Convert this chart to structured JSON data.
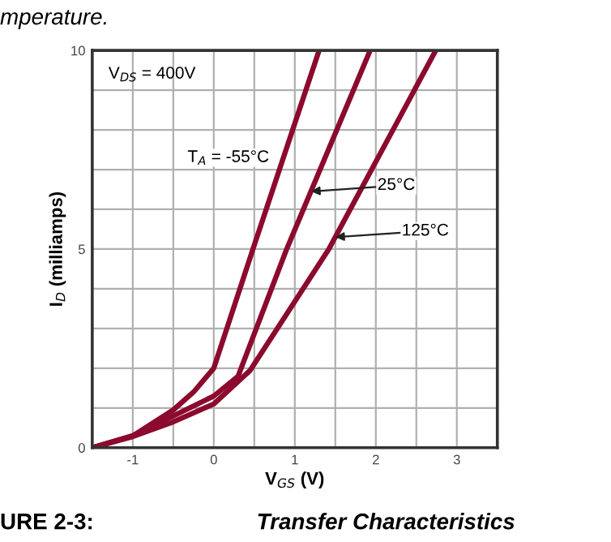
{
  "chart_data": {
    "type": "line",
    "xlabel": "V$_{GS}$ (V)",
    "ylabel": "I$_{D}$ (milliamps)",
    "xlim": [
      -1.5,
      3.5
    ],
    "ylim": [
      0,
      10
    ],
    "xticks": [
      {
        "value": -1.5,
        "label": null
      },
      -1,
      {
        "value": -0.5,
        "label": null
      },
      0,
      {
        "value": 0.5,
        "label": null
      },
      1,
      {
        "value": 1.5,
        "label": null
      },
      2,
      {
        "value": 2.5,
        "label": null
      },
      3,
      {
        "value": 3.5,
        "label": null
      }
    ],
    "yticks": [
      0,
      {
        "value": 1,
        "label": null
      },
      {
        "value": 2,
        "label": null
      },
      {
        "value": 3,
        "label": null
      },
      {
        "value": 4,
        "label": null
      },
      5,
      {
        "value": 6,
        "label": null
      },
      {
        "value": 7,
        "label": null
      },
      {
        "value": 8,
        "label": null
      },
      {
        "value": 9,
        "label": null
      },
      10
    ],
    "grid": true,
    "marker": "none",
    "line_style": "solid",
    "series": [
      {
        "color": "#8b0a2e",
        "x": [
          -1.5,
          -1,
          -0.5,
          -0.25,
          0,
          0.5,
          1.3
        ],
        "values": [
          0,
          0.3,
          0.95,
          1.4,
          2.0,
          5.1,
          10
        ]
      },
      {
        "color": "#8b0a2e",
        "x": [
          -1.5,
          -1,
          -0.5,
          0,
          0.3,
          0.9,
          1.93
        ],
        "values": [
          0,
          0.3,
          0.8,
          1.3,
          1.8,
          5,
          10
        ]
      },
      {
        "color": "#8b0a2e",
        "x": [
          -1.5,
          -1,
          -0.5,
          0,
          0.45,
          1.42,
          2.74
        ],
        "values": [
          0,
          0.28,
          0.65,
          1.1,
          1.95,
          5,
          10
        ]
      }
    ],
    "annotations": [
      "V$_{DS}$ = 400V",
      "T$_{A}$ = -55°C",
      {
        "text": "25°C",
        "x": 1.2,
        "y": 6.45
      },
      {
        "text": "125°C",
        "x": 1.5,
        "y": 5.3
      },
      "mperature.",
      "URE 2-3:",
      "Transfer Characteristics"
    ]
  }
}
